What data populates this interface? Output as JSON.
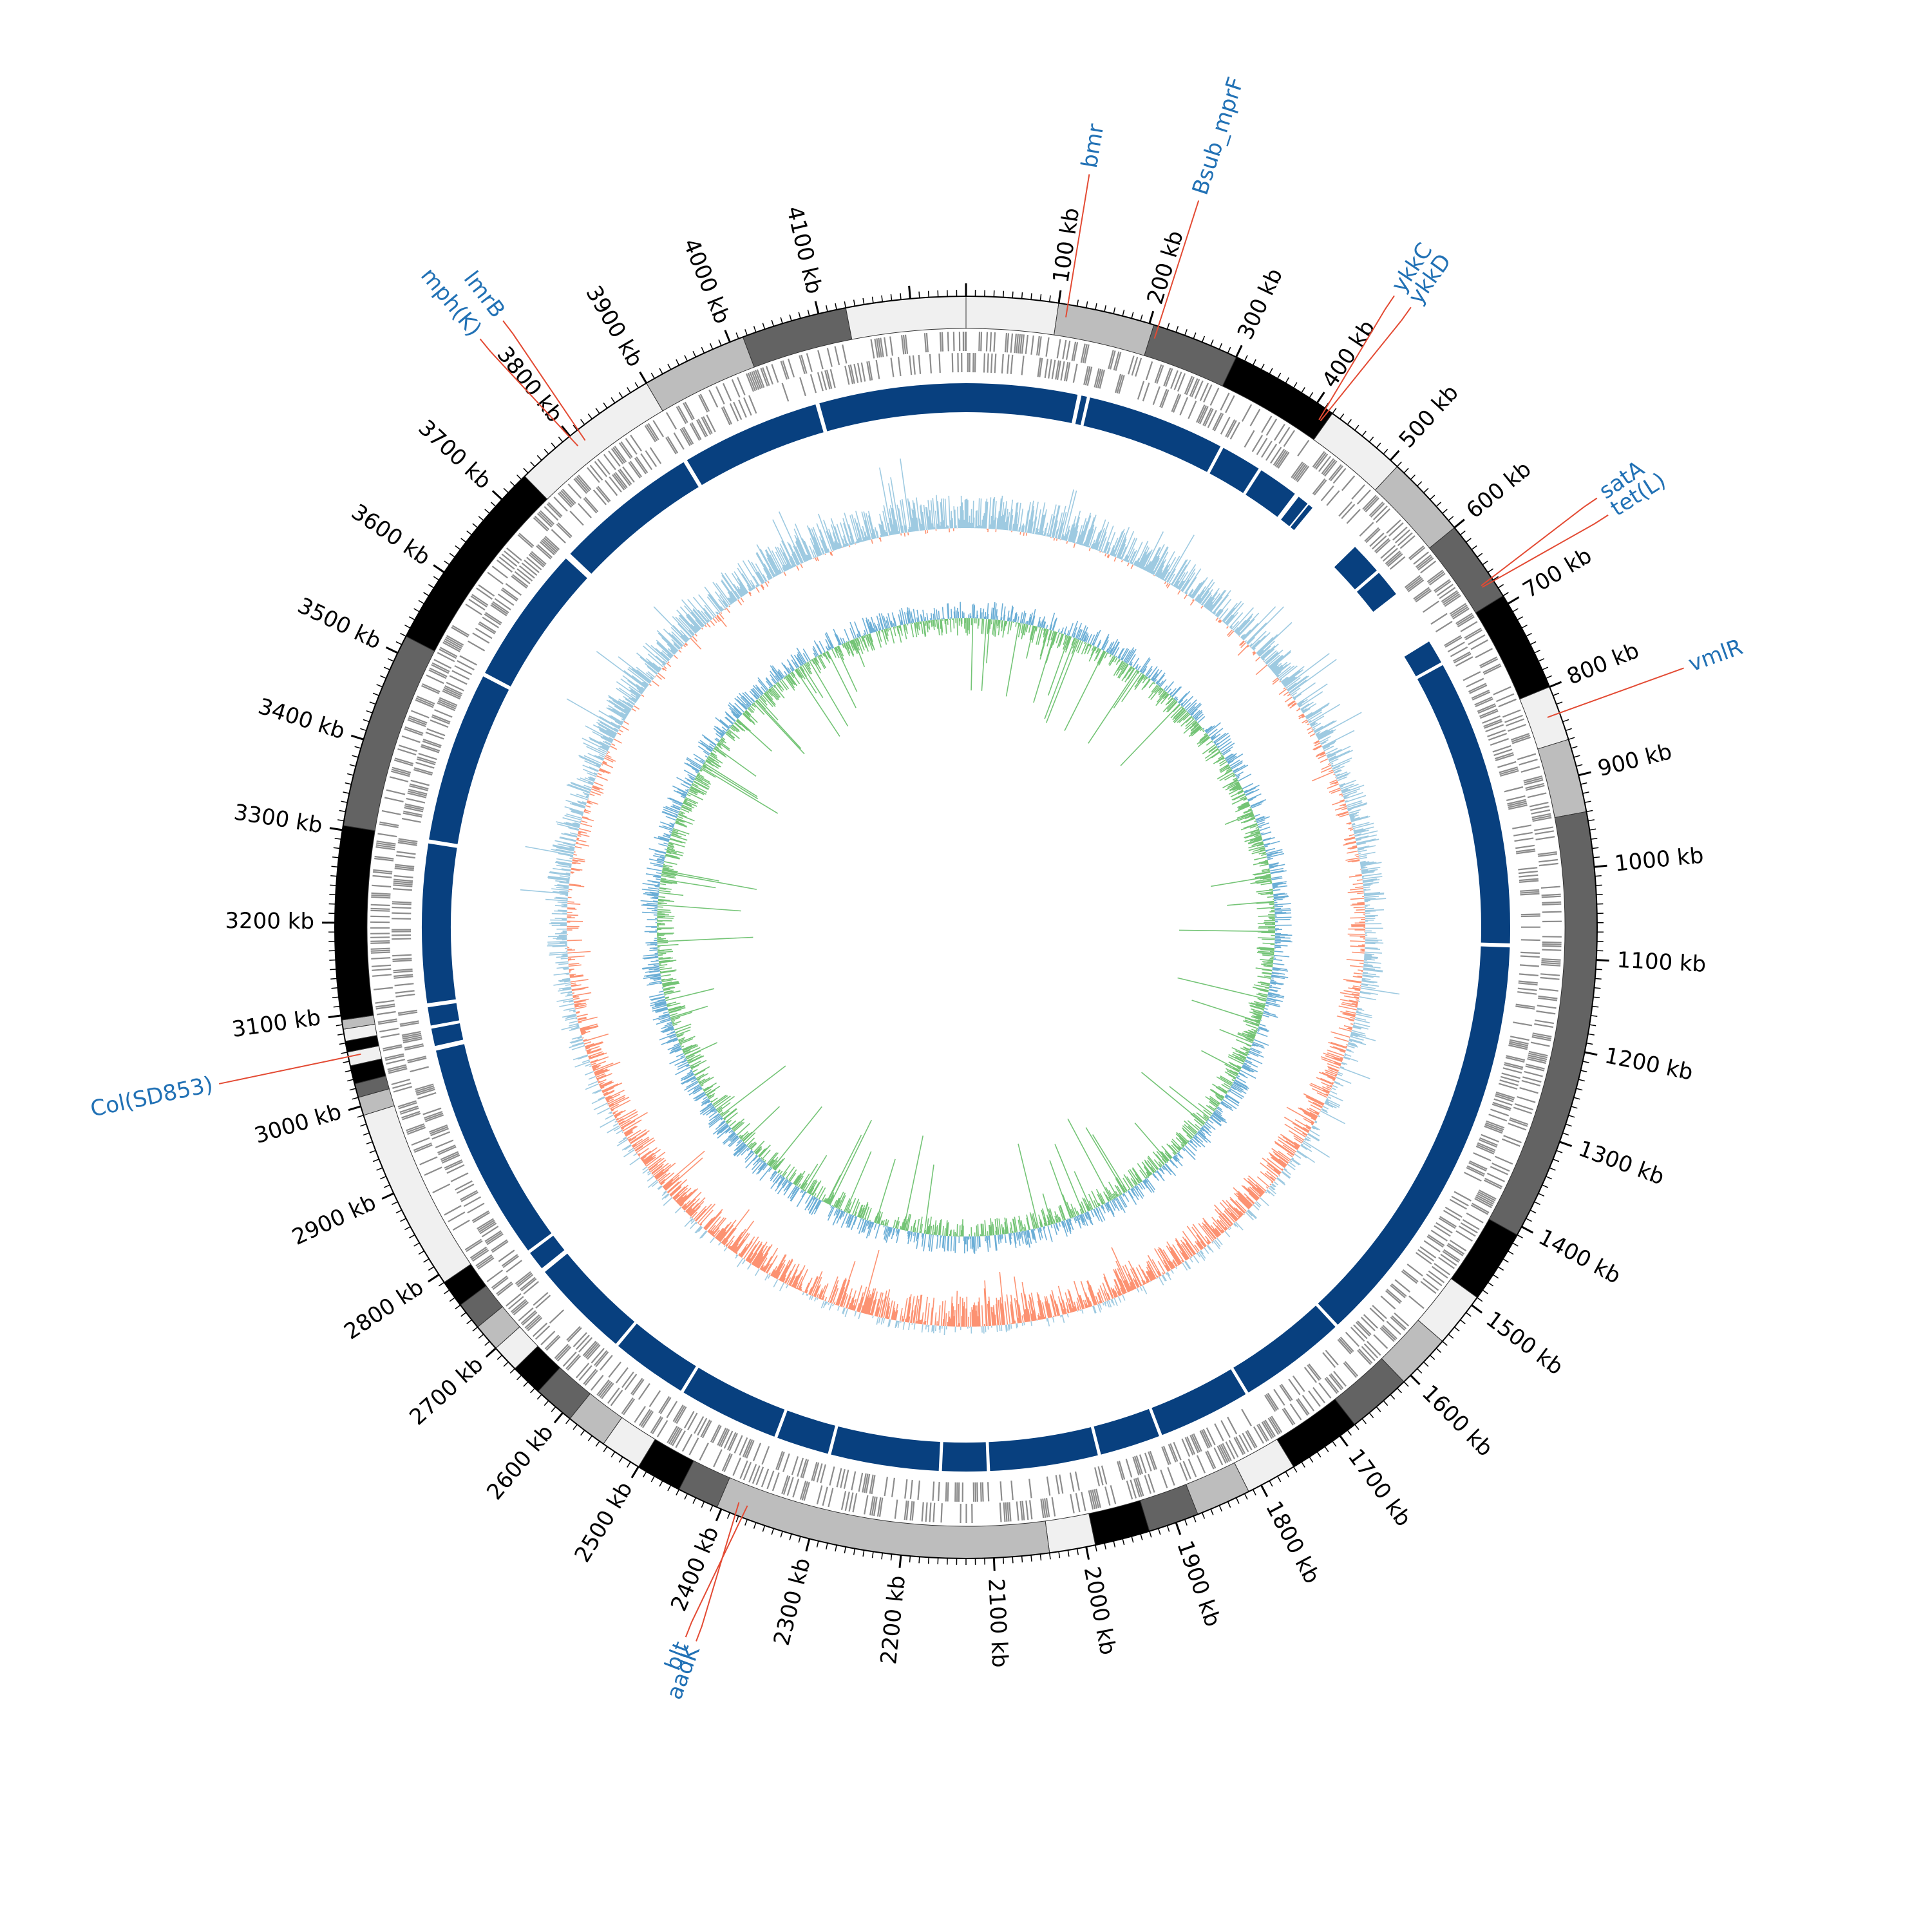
{
  "genome_map": {
    "genome_length_kb": 4260,
    "tick_labels": [
      {
        "pos": 100,
        "text": "100 kb"
      },
      {
        "pos": 200,
        "text": "200 kb"
      },
      {
        "pos": 300,
        "text": "300 kb"
      },
      {
        "pos": 400,
        "text": "400 kb"
      },
      {
        "pos": 500,
        "text": "500 kb"
      },
      {
        "pos": 600,
        "text": "600 kb"
      },
      {
        "pos": 700,
        "text": "700 kb"
      },
      {
        "pos": 800,
        "text": "800 kb"
      },
      {
        "pos": 900,
        "text": "900 kb"
      },
      {
        "pos": 1000,
        "text": "1000 kb"
      },
      {
        "pos": 1100,
        "text": "1100 kb"
      },
      {
        "pos": 1200,
        "text": "1200 kb"
      },
      {
        "pos": 1300,
        "text": "1300 kb"
      },
      {
        "pos": 1400,
        "text": "1400 kb"
      },
      {
        "pos": 1500,
        "text": "1500 kb"
      },
      {
        "pos": 1600,
        "text": "1600 kb"
      },
      {
        "pos": 1700,
        "text": "1700 kb"
      },
      {
        "pos": 1800,
        "text": "1800 kb"
      },
      {
        "pos": 1900,
        "text": "1900 kb"
      },
      {
        "pos": 2000,
        "text": "2000 kb"
      },
      {
        "pos": 2100,
        "text": "2100 kb"
      },
      {
        "pos": 2200,
        "text": "2200 kb"
      },
      {
        "pos": 2300,
        "text": "2300 kb"
      },
      {
        "pos": 2400,
        "text": "2400 kb"
      },
      {
        "pos": 2500,
        "text": "2500 kb"
      },
      {
        "pos": 2600,
        "text": "2600 kb"
      },
      {
        "pos": 2700,
        "text": "2700 kb"
      },
      {
        "pos": 2800,
        "text": "2800 kb"
      },
      {
        "pos": 2900,
        "text": "2900 kb"
      },
      {
        "pos": 3000,
        "text": "3000 kb"
      },
      {
        "pos": 3100,
        "text": "3100 kb"
      },
      {
        "pos": 3200,
        "text": "3200 kb"
      },
      {
        "pos": 3300,
        "text": "3300 kb"
      },
      {
        "pos": 3400,
        "text": "3400 kb"
      },
      {
        "pos": 3500,
        "text": "3500 kb"
      },
      {
        "pos": 3600,
        "text": "3600 kb"
      },
      {
        "pos": 3700,
        "text": "3700 kb"
      },
      {
        "pos": 3800,
        "text": "3800 kb"
      },
      {
        "pos": 3900,
        "text": "3900 kb"
      },
      {
        "pos": 4000,
        "text": "4000 kb"
      },
      {
        "pos": 4100,
        "text": "4100 kb"
      }
    ],
    "contig_segments": [
      {
        "start": 0,
        "end": 100,
        "shade": "#f0f0f0"
      },
      {
        "start": 100,
        "end": 205,
        "shade": "#bdbdbd"
      },
      {
        "start": 205,
        "end": 300,
        "shade": "#636363"
      },
      {
        "start": 300,
        "end": 420,
        "shade": "#000000"
      },
      {
        "start": 420,
        "end": 510,
        "shade": "#f0f0f0"
      },
      {
        "start": 510,
        "end": 600,
        "shade": "#bdbdbd"
      },
      {
        "start": 600,
        "end": 690,
        "shade": "#636363"
      },
      {
        "start": 690,
        "end": 800,
        "shade": "#000000"
      },
      {
        "start": 800,
        "end": 860,
        "shade": "#f0f0f0"
      },
      {
        "start": 860,
        "end": 940,
        "shade": "#bdbdbd"
      },
      {
        "start": 940,
        "end": 1410,
        "shade": "#636363"
      },
      {
        "start": 1410,
        "end": 1490,
        "shade": "#000000"
      },
      {
        "start": 1490,
        "end": 1550,
        "shade": "#f0f0f0"
      },
      {
        "start": 1550,
        "end": 1610,
        "shade": "#bdbdbd"
      },
      {
        "start": 1610,
        "end": 1680,
        "shade": "#636363"
      },
      {
        "start": 1680,
        "end": 1760,
        "shade": "#000000"
      },
      {
        "start": 1760,
        "end": 1815,
        "shade": "#f0f0f0"
      },
      {
        "start": 1815,
        "end": 1875,
        "shade": "#bdbdbd"
      },
      {
        "start": 1875,
        "end": 1930,
        "shade": "#636363"
      },
      {
        "start": 1930,
        "end": 1990,
        "shade": "#000000"
      },
      {
        "start": 1990,
        "end": 2040,
        "shade": "#f0f0f0"
      },
      {
        "start": 2040,
        "end": 2405,
        "shade": "#bdbdbd"
      },
      {
        "start": 2405,
        "end": 2450,
        "shade": "#636363"
      },
      {
        "start": 2450,
        "end": 2500,
        "shade": "#000000"
      },
      {
        "start": 2500,
        "end": 2545,
        "shade": "#f0f0f0"
      },
      {
        "start": 2545,
        "end": 2590,
        "shade": "#bdbdbd"
      },
      {
        "start": 2590,
        "end": 2635,
        "shade": "#636363"
      },
      {
        "start": 2635,
        "end": 2670,
        "shade": "#000000"
      },
      {
        "start": 2670,
        "end": 2700,
        "shade": "#f0f0f0"
      },
      {
        "start": 2700,
        "end": 2730,
        "shade": "#bdbdbd"
      },
      {
        "start": 2730,
        "end": 2760,
        "shade": "#636363"
      },
      {
        "start": 2760,
        "end": 2790,
        "shade": "#000000"
      },
      {
        "start": 2790,
        "end": 2990,
        "shade": "#f0f0f0"
      },
      {
        "start": 2990,
        "end": 3010,
        "shade": "#bdbdbd"
      },
      {
        "start": 3010,
        "end": 3025,
        "shade": "#636363"
      },
      {
        "start": 3025,
        "end": 3045,
        "shade": "#000000"
      },
      {
        "start": 3045,
        "end": 3060,
        "shade": "#f0f0f0"
      },
      {
        "start": 3060,
        "end": 3072,
        "shade": "#000000"
      },
      {
        "start": 3072,
        "end": 3085,
        "shade": "#f0f0f0"
      },
      {
        "start": 3085,
        "end": 3095,
        "shade": "#bdbdbd"
      },
      {
        "start": 3095,
        "end": 3305,
        "shade": "#000000"
      },
      {
        "start": 3305,
        "end": 3520,
        "shade": "#636363"
      },
      {
        "start": 3520,
        "end": 3735,
        "shade": "#000000"
      },
      {
        "start": 3735,
        "end": 3900,
        "shade": "#f0f0f0"
      },
      {
        "start": 3900,
        "end": 4015,
        "shade": "#bdbdbd"
      },
      {
        "start": 4015,
        "end": 4130,
        "shade": "#636363"
      },
      {
        "start": 4130,
        "end": 4260,
        "shade": "#f0f0f0"
      }
    ],
    "alignment_blocks": [
      {
        "start": 0,
        "end": 140
      },
      {
        "start": 145,
        "end": 152
      },
      {
        "start": 156,
        "end": 330
      },
      {
        "start": 334,
        "end": 385
      },
      {
        "start": 389,
        "end": 440
      },
      {
        "start": 446,
        "end": 460
      },
      {
        "start": 462,
        "end": 468
      },
      {
        "start": 540,
        "end": 580
      },
      {
        "start": 584,
        "end": 618
      },
      {
        "start": 690,
        "end": 720
      },
      {
        "start": 724,
        "end": 1085
      },
      {
        "start": 1090,
        "end": 1620
      },
      {
        "start": 1624,
        "end": 1760
      },
      {
        "start": 1764,
        "end": 1880
      },
      {
        "start": 1884,
        "end": 1960
      },
      {
        "start": 1964,
        "end": 2100
      },
      {
        "start": 2104,
        "end": 2160
      },
      {
        "start": 2164,
        "end": 2300
      },
      {
        "start": 2304,
        "end": 2370
      },
      {
        "start": 2374,
        "end": 2500
      },
      {
        "start": 2504,
        "end": 2600
      },
      {
        "start": 2604,
        "end": 2730
      },
      {
        "start": 2736,
        "end": 2760
      },
      {
        "start": 2764,
        "end": 3040
      },
      {
        "start": 3046,
        "end": 3068
      },
      {
        "start": 3072,
        "end": 3095
      },
      {
        "start": 3100,
        "end": 3300
      },
      {
        "start": 3305,
        "end": 3520
      },
      {
        "start": 3525,
        "end": 3700
      },
      {
        "start": 3708,
        "end": 3890
      },
      {
        "start": 3895,
        "end": 4070
      },
      {
        "start": 4075,
        "end": 4260
      }
    ],
    "gene_markers": [
      {
        "label": "bmr",
        "pos": 110
      },
      {
        "label": "Bsub_mprF",
        "pos": 210
      },
      {
        "label": "ykkC",
        "pos": 412
      },
      {
        "label": "ykkD",
        "pos": 414
      },
      {
        "label": "satA",
        "pos": 668
      },
      {
        "label": "tet(L)",
        "pos": 670
      },
      {
        "label": "vmlR",
        "pos": 830
      },
      {
        "label": "aadK",
        "pos": 2385
      },
      {
        "label": "blt",
        "pos": 2375
      },
      {
        "label": "Col(SD853)",
        "pos": 3055
      },
      {
        "label": "mph(K)",
        "pos": 3800
      },
      {
        "label": "lmrB",
        "pos": 3810
      }
    ],
    "colors": {
      "alignment": "#08407f",
      "gc_content_positive": "#9ecae1",
      "gc_content_negative": "#fc9272",
      "gc_skew_positive": "#6baed6",
      "gc_skew_negative": "#74c476",
      "gene_label": "#2171b5",
      "leader_line": "#e34a33",
      "feature_ticks": "#8c8c8c"
    }
  }
}
